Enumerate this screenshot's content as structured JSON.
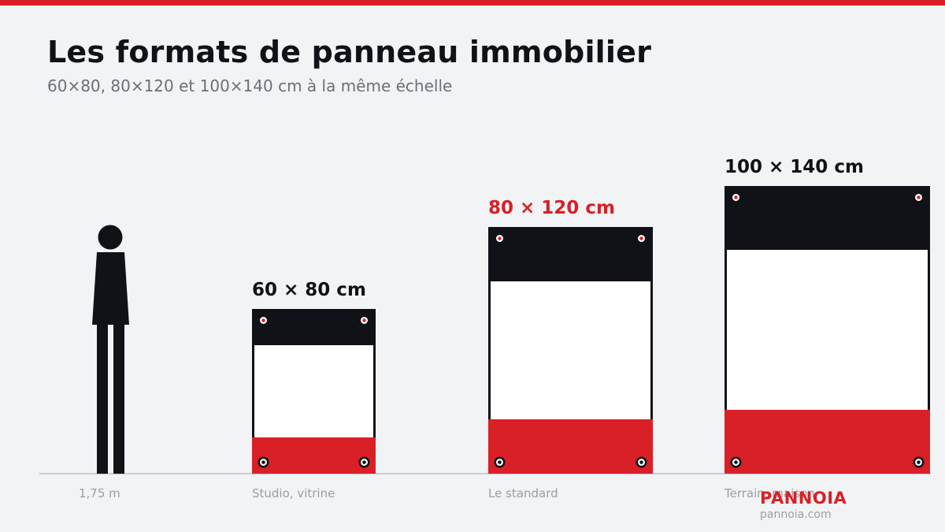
{
  "header": {
    "title": "Les formats de panneau immobilier",
    "subtitle": "60×80, 80×120 et 100×140 cm à la même échelle"
  },
  "reference": {
    "caption": "1,75 m"
  },
  "panels": [
    {
      "size_label": "60 × 80 cm",
      "caption": "Studio, vitrine",
      "highlight": false
    },
    {
      "size_label": "80 × 120 cm",
      "caption": "Le standard",
      "highlight": true
    },
    {
      "size_label": "100 × 140 cm",
      "caption": "Terrain, maison",
      "highlight": false
    }
  ],
  "brand": {
    "name": "PANNOIA",
    "url": "pannoia.com"
  },
  "colors": {
    "accent": "#d92027",
    "dark": "#111217",
    "panel_white": "#ffffff",
    "background": "#f2f3f5",
    "muted": "#9a9ea6"
  }
}
